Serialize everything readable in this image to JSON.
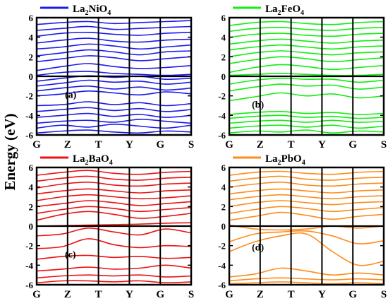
{
  "chart_data": {
    "type": "line",
    "ylabel": "Energy (eV)",
    "ylim": [
      -6,
      6
    ],
    "y_ticks": [
      6,
      4,
      2,
      0,
      -2,
      -4,
      -6
    ],
    "x_ticks": [
      "G",
      "Z",
      "T",
      "Y",
      "G",
      "S"
    ],
    "fermi_level": 0,
    "panels": [
      {
        "label": "(a)",
        "legend": {
          "base": "La",
          "sub1": "2",
          "mid": "NiO",
          "sub2": "4"
        },
        "color": "#1a1aee",
        "bands": [
          [
            -5.8,
            -5.6,
            -5.5,
            -5.7,
            -5.8,
            -5.6,
            -5.7
          ],
          [
            -5.3,
            -5.0,
            -5.2,
            -4.9,
            -5.1,
            -5.3,
            -5.0
          ],
          [
            -4.8,
            -4.6,
            -4.5,
            -4.7,
            -4.4,
            -4.6,
            -4.8
          ],
          [
            -4.2,
            -4.0,
            -3.8,
            -4.1,
            -3.9,
            -4.2,
            -4.0
          ],
          [
            -3.6,
            -3.4,
            -3.2,
            -3.5,
            -3.3,
            -3.6,
            -3.4
          ],
          [
            -3.0,
            -2.9,
            -2.6,
            -2.9,
            -2.7,
            -3.0,
            -2.8
          ],
          [
            -2.0,
            -1.8,
            -1.5,
            -1.7,
            -1.9,
            -1.6,
            -1.8
          ],
          [
            -1.5,
            -1.2,
            -1.0,
            -1.3,
            -1.1,
            -1.4,
            -1.2
          ],
          [
            -1.0,
            -0.7,
            -0.4,
            -0.6,
            -0.5,
            -0.8,
            -0.6
          ],
          [
            -0.5,
            -0.2,
            0.05,
            -0.1,
            0.0,
            -0.3,
            -0.2
          ],
          [
            0.1,
            0.4,
            0.5,
            0.3,
            0.2,
            0.1,
            0.2
          ],
          [
            0.6,
            1.0,
            1.3,
            1.0,
            0.8,
            0.9,
            1.1
          ],
          [
            1.5,
            1.8,
            2.1,
            1.9,
            1.6,
            1.8,
            2.0
          ],
          [
            2.1,
            2.4,
            2.7,
            2.5,
            2.2,
            2.5,
            2.6
          ],
          [
            2.8,
            3.0,
            3.3,
            3.1,
            2.8,
            3.0,
            3.2
          ],
          [
            3.4,
            3.7,
            3.9,
            3.6,
            3.5,
            3.7,
            3.8
          ],
          [
            4.1,
            4.4,
            4.5,
            4.3,
            4.2,
            4.4,
            4.5
          ],
          [
            4.7,
            4.9,
            5.1,
            4.8,
            4.9,
            5.0,
            5.1
          ],
          [
            5.3,
            5.5,
            5.6,
            5.4,
            5.5,
            5.6,
            5.7
          ]
        ]
      },
      {
        "label": "(b)",
        "legend": {
          "base": "La",
          "sub1": "2",
          "mid": "FeO",
          "sub2": "4"
        },
        "color": "#11ee11",
        "bands": [
          [
            -5.8,
            -5.6,
            -5.7,
            -5.5,
            -5.8,
            -5.6,
            -5.7
          ],
          [
            -5.3,
            -5.1,
            -5.0,
            -5.2,
            -5.0,
            -5.3,
            -5.1
          ],
          [
            -4.8,
            -4.6,
            -4.5,
            -4.7,
            -4.5,
            -4.7,
            -4.6
          ],
          [
            -4.3,
            -4.1,
            -4.0,
            -4.2,
            -4.1,
            -4.3,
            -4.2
          ],
          [
            -3.9,
            -3.7,
            -3.6,
            -3.8,
            -3.7,
            -3.9,
            -3.8
          ],
          [
            -2.5,
            -2.1,
            -1.7,
            -2.0,
            -1.8,
            -2.2,
            -2.0
          ],
          [
            -1.5,
            -1.1,
            -0.8,
            -1.0,
            -0.9,
            -1.3,
            -1.1
          ],
          [
            -0.8,
            -0.4,
            -0.2,
            -0.3,
            -0.3,
            -0.6,
            -0.4
          ],
          [
            0.1,
            0.2,
            0.3,
            0.2,
            0.1,
            0.1,
            0.2
          ],
          [
            0.4,
            0.9,
            1.2,
            1.0,
            0.7,
            0.9,
            1.1
          ],
          [
            1.3,
            1.7,
            2.0,
            1.8,
            1.5,
            1.7,
            1.9
          ],
          [
            2.0,
            2.4,
            2.6,
            2.4,
            2.2,
            2.4,
            2.5
          ],
          [
            2.7,
            3.0,
            3.2,
            3.0,
            2.8,
            3.0,
            3.1
          ],
          [
            3.3,
            3.6,
            3.8,
            3.6,
            3.4,
            3.6,
            3.7
          ],
          [
            4.0,
            4.3,
            4.4,
            4.2,
            4.1,
            4.3,
            4.4
          ],
          [
            4.6,
            4.9,
            5.0,
            4.8,
            4.7,
            4.9,
            5.0
          ],
          [
            5.2,
            5.5,
            5.6,
            5.4,
            5.3,
            5.5,
            5.6
          ]
        ]
      },
      {
        "label": "(c)",
        "legend": {
          "base": "La",
          "sub1": "2",
          "mid": "BaO",
          "sub2": "4"
        },
        "color": "#ee1111",
        "bands": [
          [
            -5.8,
            -5.6,
            -5.6,
            -5.7,
            -5.6,
            -5.8,
            -5.7
          ],
          [
            -5.3,
            -5.1,
            -5.0,
            -5.1,
            -5.0,
            -5.2,
            -5.1
          ],
          [
            -4.6,
            -4.4,
            -4.2,
            -4.4,
            -4.3,
            -4.0,
            -4.3
          ],
          [
            -3.4,
            -3.1,
            -3.0,
            -3.2,
            -3.1,
            -3.3,
            -3.2
          ],
          [
            -2.3,
            -2.1,
            -1.3,
            -1.9,
            -2.2,
            -2.0,
            -2.1
          ],
          [
            -1.0,
            -0.8,
            -0.2,
            -0.6,
            -0.9,
            -0.3,
            -0.7
          ],
          [
            0.0,
            0.05,
            0.1,
            0.15,
            0.2,
            0.3,
            0.35
          ],
          [
            0.6,
            1.2,
            1.5,
            1.2,
            0.8,
            1.0,
            1.3
          ],
          [
            1.3,
            1.7,
            2.0,
            1.8,
            1.5,
            1.7,
            1.9
          ],
          [
            2.0,
            2.3,
            2.6,
            2.4,
            2.1,
            2.3,
            2.5
          ],
          [
            2.6,
            3.0,
            3.2,
            3.0,
            2.8,
            2.9,
            3.1
          ],
          [
            3.3,
            3.6,
            3.8,
            3.6,
            3.4,
            3.6,
            3.7
          ],
          [
            3.9,
            4.3,
            4.5,
            4.2,
            4.1,
            4.3,
            4.4
          ],
          [
            4.6,
            4.9,
            5.1,
            4.8,
            4.7,
            4.9,
            5.0
          ],
          [
            5.2,
            5.5,
            5.7,
            5.4,
            5.3,
            5.5,
            5.6
          ]
        ]
      },
      {
        "label": "(d)",
        "legend": {
          "base": "La",
          "sub1": "2",
          "mid": "PbO",
          "sub2": "4"
        },
        "color": "#ff8c1a",
        "bands": [
          [
            -5.9,
            -5.8,
            -5.7,
            -5.8,
            -5.9,
            -5.8,
            -5.9
          ],
          [
            -5.6,
            -5.4,
            -5.3,
            -5.4,
            -5.5,
            -5.4,
            -5.5
          ],
          [
            -5.2,
            -4.9,
            -4.3,
            -4.6,
            -5.0,
            -4.8,
            -5.0
          ],
          [
            -2.6,
            -1.6,
            -1.0,
            -0.8,
            -2.6,
            -4.0,
            -3.6
          ],
          [
            -1.6,
            -0.8,
            -0.6,
            -0.5,
            -1.0,
            -1.8,
            -1.5
          ],
          [
            0.1,
            -0.3,
            -0.4,
            -0.3,
            0.0,
            -0.2,
            0.0
          ],
          [
            0.6,
            1.0,
            1.4,
            1.1,
            0.7,
            1.0,
            1.2
          ],
          [
            1.3,
            1.7,
            2.0,
            1.8,
            1.5,
            1.7,
            1.9
          ],
          [
            2.0,
            2.4,
            2.6,
            2.4,
            2.2,
            2.4,
            2.5
          ],
          [
            2.7,
            3.0,
            3.2,
            3.0,
            2.8,
            3.0,
            3.1
          ],
          [
            3.3,
            3.6,
            3.8,
            3.6,
            3.4,
            3.6,
            3.7
          ],
          [
            4.0,
            4.3,
            4.5,
            4.2,
            4.1,
            4.3,
            4.4
          ],
          [
            4.6,
            4.9,
            5.1,
            4.8,
            4.7,
            4.9,
            5.0
          ],
          [
            5.2,
            5.5,
            5.6,
            5.4,
            5.3,
            5.5,
            5.6
          ]
        ]
      }
    ]
  }
}
